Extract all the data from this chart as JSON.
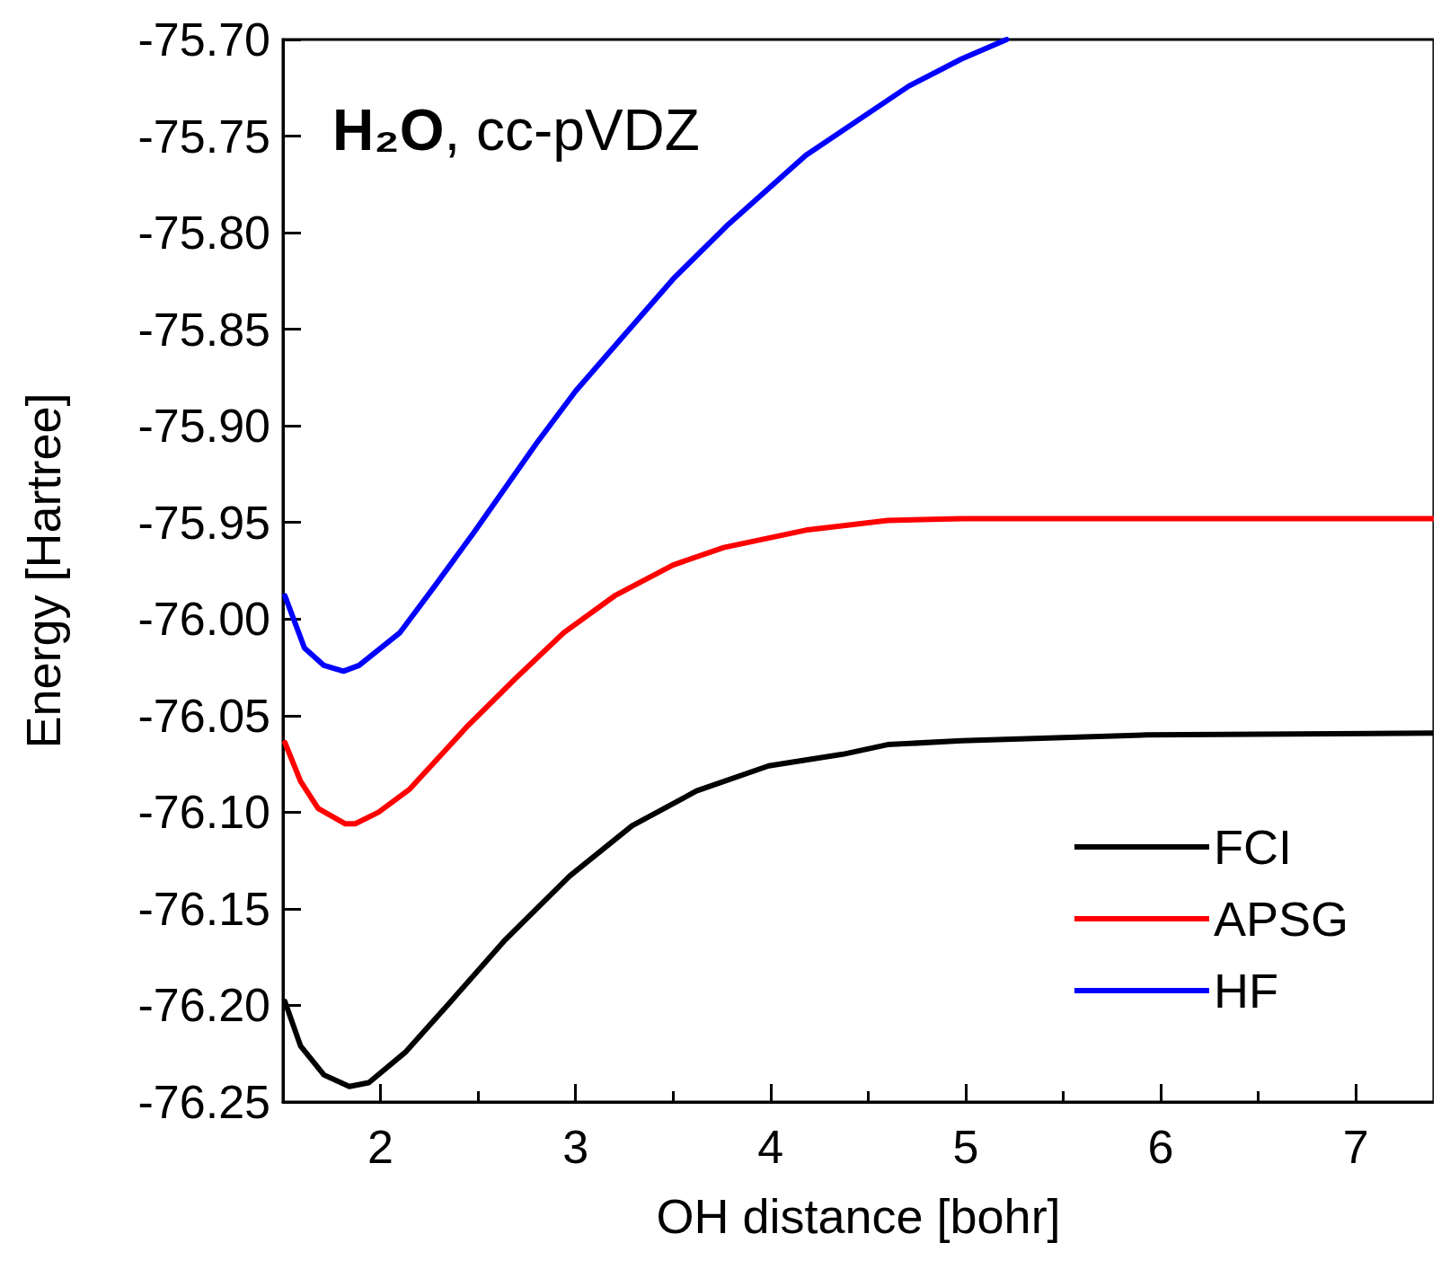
{
  "chart_data": {
    "type": "line",
    "xlabel": "OH distance [bohr]",
    "ylabel": "Energy [Hartree]",
    "annotations": [
      "H₂O, cc-pVDZ"
    ],
    "xlim": [
      1.5,
      7.4
    ],
    "xticks": [
      2,
      3,
      4,
      5,
      6,
      7
    ],
    "ylim": [
      -76.25,
      -75.7
    ],
    "yticks": [
      {
        "value": -76.25,
        "label": "-76.25"
      },
      {
        "value": -76.2,
        "label": "-76.20"
      },
      {
        "value": -76.15,
        "label": "-76.15"
      },
      {
        "value": -76.1,
        "label": "-76.10"
      },
      {
        "value": -76.05,
        "label": "-76.05"
      },
      {
        "value": -76,
        "label": "-76.00"
      },
      {
        "value": -75.95,
        "label": "-75.95"
      },
      {
        "value": -75.9,
        "label": "-75.90"
      },
      {
        "value": -75.85,
        "label": "-75.85"
      },
      {
        "value": -75.8,
        "label": "-75.80"
      },
      {
        "value": -75.75,
        "label": "-75.75"
      },
      {
        "value": -75.7,
        "label": "-75.70"
      }
    ],
    "grid": false,
    "legend": "bottom right",
    "marker": "none",
    "line_style": "solid",
    "series": [
      {
        "name": "FCI",
        "color": "#000000",
        "x": [
          1.51,
          1.59,
          1.71,
          1.84,
          1.94,
          2.13,
          2.36,
          2.64,
          2.97,
          3.29,
          3.62,
          3.99,
          4.37,
          4.6,
          4.98,
          5.93,
          7.4
        ],
        "values": [
          -76.198,
          -76.221,
          -76.236,
          -76.242,
          -76.24,
          -76.224,
          -76.198,
          -76.166,
          -76.133,
          -76.107,
          -76.089,
          -76.076,
          -76.07,
          -76.065,
          -76.063,
          -76.06,
          -76.059
        ]
      },
      {
        "name": "APSG",
        "color": "#ff0000",
        "x": [
          1.51,
          1.59,
          1.68,
          1.82,
          1.87,
          1.99,
          2.15,
          2.45,
          2.69,
          2.94,
          3.2,
          3.5,
          3.76,
          4.18,
          4.6,
          4.98,
          7.4
        ],
        "values": [
          -76.064,
          -76.084,
          -76.098,
          -76.106,
          -76.106,
          -76.1,
          -76.088,
          -76.055,
          -76.031,
          -76.007,
          -75.988,
          -75.972,
          -75.963,
          -75.954,
          -75.949,
          -75.948,
          -75.948
        ]
      },
      {
        "name": "HF",
        "color": "#0000ff",
        "x": [
          1.51,
          1.61,
          1.71,
          1.81,
          1.89,
          2.1,
          2.27,
          2.48,
          2.8,
          3.0,
          3.25,
          3.5,
          3.78,
          4.18,
          4.71,
          4.98,
          5.21
        ],
        "values": [
          -75.988,
          -76.015,
          -76.024,
          -76.027,
          -76.024,
          -76.007,
          -75.984,
          -75.955,
          -75.909,
          -75.882,
          -75.853,
          -75.824,
          -75.796,
          -75.76,
          -75.724,
          -75.71,
          -75.7
        ]
      }
    ]
  }
}
